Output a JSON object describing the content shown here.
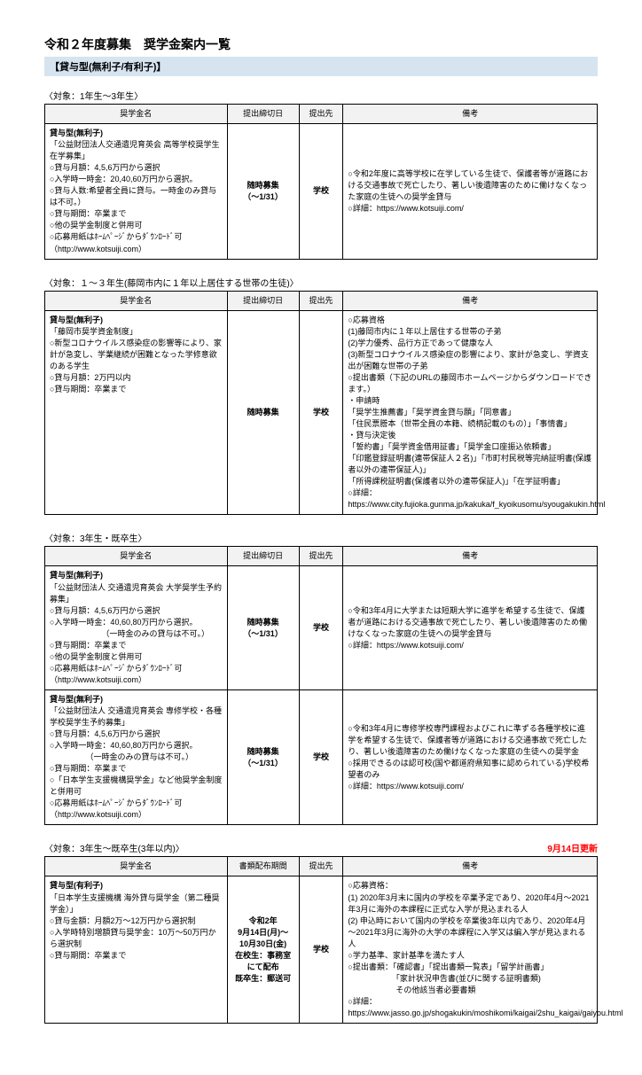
{
  "page": {
    "title": "令和２年度募集　奨学金案内一覧",
    "subtitle": "【貸与型(無利子/有利子)】"
  },
  "headers": {
    "name": "奨学金名",
    "deadline": "提出締切日",
    "submit_to": "提出先",
    "remarks": "備考",
    "period": "書類配布期間"
  },
  "sections": [
    {
      "caption": "〈対象：1年生～3年生〉",
      "rows": [
        {
          "type": "貸与型(無利子)",
          "name_lines": "「公益財団法人交通遺児育英会 高等学校奨学生在学募集」\n○貸与月額：4,5,6万円から選択\n○入学時一時金：20,40,60万円から選択。\n○貸与人数:希望者全員に貸与。一時金のみ貸与は不可。）\n○貸与期間：卒業まで\n○他の奨学金制度と併用可\n○応募用紙はﾎｰﾑﾍﾟｰｼﾞからﾀﾞｳﾝﾛｰﾄﾞ可\n（http://www.kotsuiji.com）",
          "deadline": "随時募集\n（～1/31）",
          "submit": "学校",
          "remarks": "○令和2年度に高等学校に在学している生徒で、保護者等が道路における交通事故で死亡したり、著しい後遺障害のために働けなくなった家庭の生徒への奨学金貸与\n○詳細：https://www.kotsuiji.com/"
        }
      ]
    },
    {
      "caption": "〈対象：１～３年生(藤岡市内に１年以上居住する世帯の生徒)〉",
      "rows": [
        {
          "type": "貸与型(無利子)",
          "name_lines": "「藤岡市奨学資金制度」\n○新型コロナウイルス感染症の影響等により、家計が急変し、学業継続が困難となった学修意欲のある学生\n○貸与月額：2万円以内\n○貸与期間：卒業まで",
          "deadline": "随時募集",
          "submit": "学校",
          "remarks": "○応募資格\n(1)藤岡市内に１年以上居住する世帯の子弟\n(2)学力優秀、品行方正であって健康な人\n(3)新型コロナウイルス感染症の影響により、家計が急変し、学資支出が困難な世帯の子弟\n○提出書類（下記のURLの藤岡市ホームページからダウンロードできます。）\n・申請時\n「奨学生推薦書」「奨学資金貸与願」「同意書」\n「住民票謄本（世帯全員の本籍、続柄記載のもの）」「事情書」\n・貸与決定後\n「誓約書」「奨学資金借用証書」「奨学金口座振込依頼書」\n「印鑑登録証明書(連帯保証人２名)」「市町村民税等完納証明書(保護者以外の連帯保証人)」\n「所得課税証明書(保護者以外の連帯保証人)」「在学証明書」\n○詳細：　https://www.city.fujioka.gunma.jp/kakuka/f_kyoikusomu/syougakukin.html"
        }
      ]
    },
    {
      "caption": "〈対象：3年生・既卒生〉",
      "rows": [
        {
          "type": "貸与型(無利子)",
          "name_lines": "「公益財団法人 交通遺児育英会 大学奨学生予約募集」\n○貸与月額：4,5,6万円から選択\n○入学時一時金：40,60,80万円から選択。\n　　　　　　　（一時金のみの貸与は不可。）\n○貸与期間：卒業まで\n○他の奨学金制度と併用可\n○応募用紙はﾎｰﾑﾍﾟｰｼﾞからﾀﾞｳﾝﾛｰﾄﾞ可\n（http://www.kotsuiji.com）",
          "deadline": "随時募集\n（～1/31）",
          "submit": "学校",
          "remarks": "○令和3年4月に大学または短期大学に進学を希望する生徒で、保護者が道路における交通事故で死亡したり、著しい後遺障害のため働けなくなった家庭の生徒への奨学金貸与\n○詳細：https://www.kotsuiji.com/"
        },
        {
          "type": "貸与型(無利子)",
          "name_lines": "「公益財団法人 交通遺児育英会 専修学校・各種学校奨学生予約募集」\n○貸与月額：4,5,6万円から選択\n○入学時一時金：40,60,80万円から選択。\n　　　　　（一時金のみの貸与は不可。）\n○貸与期間：卒業まで\n○「日本学生支援機構奨学金」など他奨学金制度と併用可\n○応募用紙はﾎｰﾑﾍﾟｰｼﾞからﾀﾞｳﾝﾛｰﾄﾞ可\n（http://www.kotsuiji.com）",
          "deadline": "随時募集\n（～1/31）",
          "submit": "学校",
          "remarks": "○令和3年4月に専修学校専門課程およびこれに準ずる各種学校に進学を希望する生徒で、保護者等が道路における交通事故で死亡したり、著しい後遺障害のため働けなくなった家庭の生徒への奨学金\n○採用できるのは認可校(国や都道府県知事に認められている)学校希望者のみ\n○詳細：https://www.kotsuiji.com/"
        }
      ]
    },
    {
      "caption": "〈対象：3年生～既卒生(3年以内)〉",
      "update": "9月14日更新",
      "header_period": true,
      "rows": [
        {
          "type": "貸与型(有利子)",
          "name_lines": "「日本学生支援機構 海外貸与奨学金（第二種奨学金）」\n○貸与金額：月額2万～12万円から選択制\n○入学時特別増額貸与奨学金：10万～50万円から選択制\n○貸与期間：卒業まで",
          "deadline": "令和2年\n9月14日(月)～\n10月30日(金)\n在校生：事務室にて配布\n既卒生：郵送可",
          "submit": "学校",
          "remarks": "○応募資格：\n(1) 2020年3月末に国内の学校を卒業予定であり、2020年4月～2021年3月に海外の本課程に正式な入学が見込まれる人\n(2) 申込時において国内の学校を卒業後3年以内であり、2020年4月～2021年3月に海外の大学の本課程に入学又は編入学が見込まれる人\n○学力基準、家計基準を満たす人\n○提出書類：「確認書」「提出書類一覧表」「留学計画書」\n　　　　　　「家計状況申告書(並びに関する証明書類)\n　　　　　　その他該当者必要書類\n○詳細：https://www.jasso.go.jp/shogakukin/moshikomi/kaigai/2shu_kaigai/gaiyou.html"
        }
      ]
    }
  ]
}
